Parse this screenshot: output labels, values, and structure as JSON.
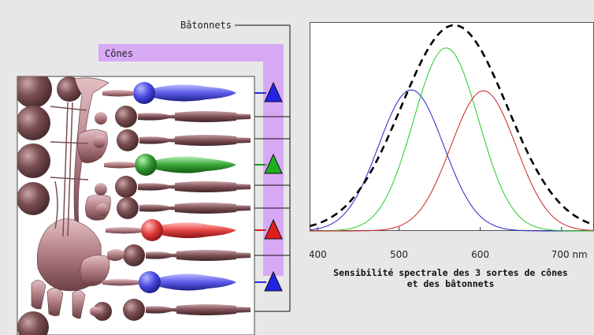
{
  "labels": {
    "rods": "Bâtonnets",
    "cones": "Cônes"
  },
  "colors": {
    "background": "#e7e7e7",
    "cone_band": "#d7a9f5",
    "cell_body": "#7a4e52",
    "blue_cone": "#2b2bd8",
    "green_cone": "#1f9a1f",
    "red_cone": "#d81f1f"
  },
  "receptors": [
    {
      "kind": "cone",
      "color": "blue"
    },
    {
      "kind": "rod"
    },
    {
      "kind": "rod"
    },
    {
      "kind": "cone",
      "color": "green"
    },
    {
      "kind": "rod"
    },
    {
      "kind": "rod"
    },
    {
      "kind": "cone",
      "color": "red"
    },
    {
      "kind": "rod"
    },
    {
      "kind": "cone",
      "color": "blue"
    },
    {
      "kind": "rod"
    }
  ],
  "caption": {
    "line1": "Sensibilité spectrale des 3 sortes de cônes",
    "line2": "et des bâtonnets"
  },
  "chart_data": {
    "type": "line",
    "xlim": [
      390,
      740
    ],
    "ylim": [
      0,
      1
    ],
    "x_ticks": [
      400,
      500,
      600,
      700
    ],
    "x_tick_labels": [
      "400",
      "500",
      "600",
      "700 nm"
    ],
    "grid": false,
    "series": [
      {
        "key": "blue",
        "color": "#2222cc",
        "dash": "solid",
        "peak": 515,
        "sigma": 40,
        "height": 0.675
      },
      {
        "key": "green",
        "color": "#22cc22",
        "dash": "solid",
        "peak": 558,
        "sigma": 40,
        "height": 0.876
      },
      {
        "key": "red",
        "color": "#cc2222",
        "dash": "solid",
        "peak": 604,
        "sigma": 40,
        "height": 0.671
      },
      {
        "key": "rods_total",
        "color": "#000000",
        "dash": "dashed",
        "peak": 568,
        "sigma": 65,
        "height": 0.985
      }
    ]
  }
}
